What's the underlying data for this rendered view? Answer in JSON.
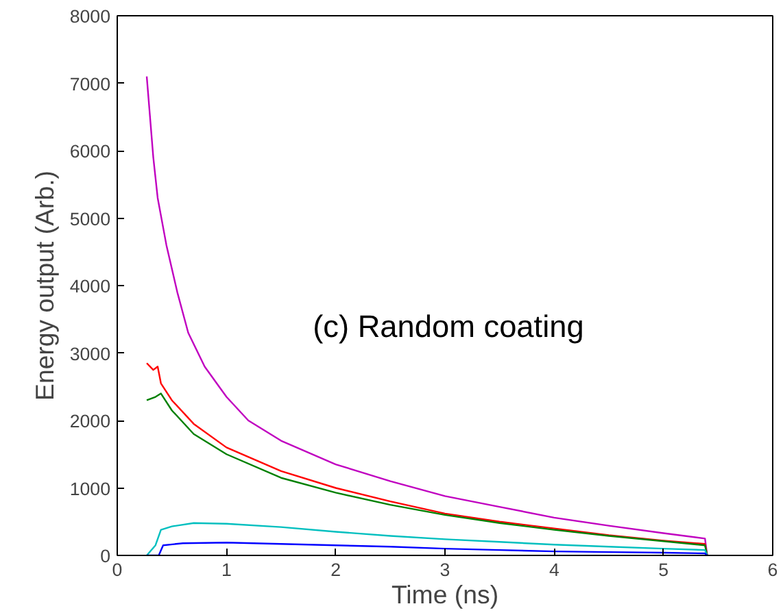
{
  "chart_data": {
    "type": "line",
    "xlabel": "Time (ns)",
    "ylabel": "Energy output (Arb.)",
    "annotations": [
      "(c)   Random coating"
    ],
    "xlim": [
      0,
      6
    ],
    "ylim": [
      0,
      8000
    ],
    "xticks": [
      0,
      1,
      2,
      3,
      4,
      5,
      6
    ],
    "yticks": [
      0,
      1000,
      2000,
      3000,
      4000,
      5000,
      6000,
      7000,
      8000
    ],
    "grid": false,
    "series": [
      {
        "color": "#c000c0",
        "x": [
          0.27,
          0.3,
          0.33,
          0.37,
          0.45,
          0.55,
          0.65,
          0.8,
          1.0,
          1.2,
          1.5,
          2.0,
          2.5,
          3.0,
          3.5,
          4.0,
          4.5,
          5.0,
          5.38,
          5.4
        ],
        "values": [
          7100,
          6500,
          5900,
          5300,
          4600,
          3900,
          3300,
          2800,
          2350,
          2000,
          1700,
          1350,
          1100,
          880,
          720,
          560,
          440,
          330,
          250,
          0
        ]
      },
      {
        "color": "#ff0000",
        "x": [
          0.27,
          0.33,
          0.37,
          0.4,
          0.5,
          0.7,
          1.0,
          1.5,
          2.0,
          2.5,
          3.0,
          3.5,
          4.0,
          4.5,
          5.0,
          5.38,
          5.4
        ],
        "values": [
          2850,
          2750,
          2800,
          2550,
          2300,
          1950,
          1600,
          1250,
          1000,
          800,
          620,
          500,
          400,
          300,
          220,
          170,
          0
        ]
      },
      {
        "color": "#008000",
        "x": [
          0.27,
          0.35,
          0.4,
          0.5,
          0.7,
          1.0,
          1.5,
          2.0,
          2.5,
          3.0,
          3.5,
          4.0,
          4.5,
          5.0,
          5.38,
          5.4
        ],
        "values": [
          2300,
          2350,
          2400,
          2150,
          1800,
          1500,
          1150,
          930,
          750,
          600,
          480,
          380,
          290,
          210,
          150,
          0
        ]
      },
      {
        "color": "#00bfbf",
        "x": [
          0.27,
          0.35,
          0.4,
          0.5,
          0.7,
          1.0,
          1.5,
          2.0,
          2.5,
          3.0,
          3.5,
          4.0,
          4.5,
          5.0,
          5.38,
          5.4
        ],
        "values": [
          0,
          150,
          380,
          430,
          480,
          470,
          420,
          350,
          290,
          240,
          200,
          160,
          130,
          100,
          80,
          0
        ]
      },
      {
        "color": "#0000ff",
        "x": [
          0.27,
          0.38,
          0.42,
          0.6,
          1.0,
          1.5,
          2.0,
          2.5,
          3.0,
          3.5,
          4.0,
          4.5,
          5.0,
          5.38,
          5.4
        ],
        "values": [
          0,
          0,
          150,
          180,
          190,
          170,
          150,
          130,
          100,
          80,
          60,
          50,
          40,
          30,
          0
        ]
      }
    ]
  }
}
